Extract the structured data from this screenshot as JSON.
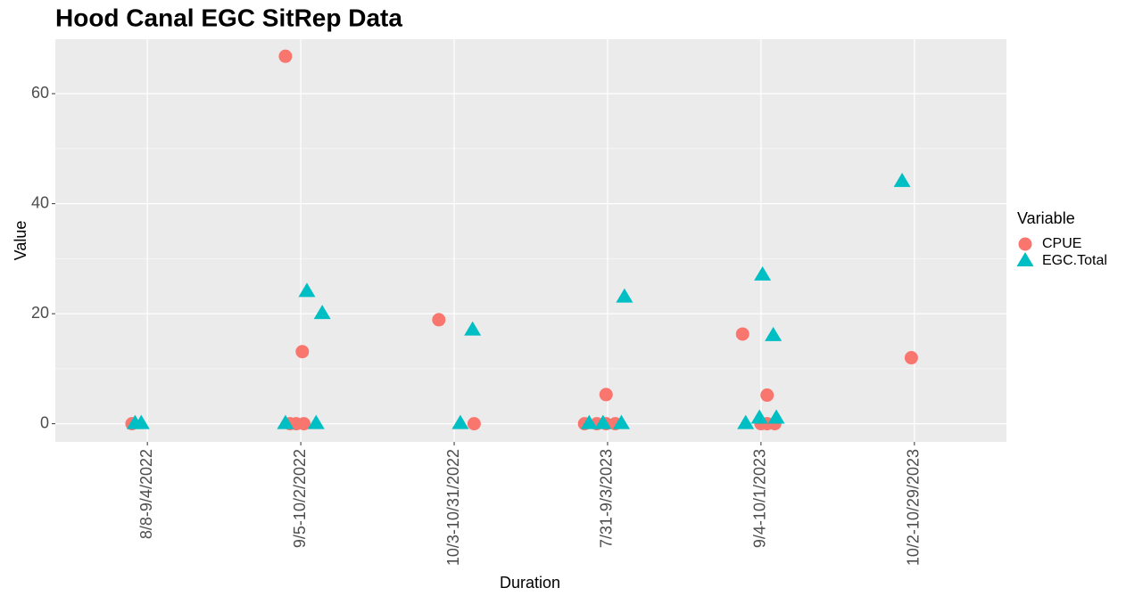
{
  "chart_data": {
    "type": "scatter",
    "title": "Hood Canal EGC SitRep Data",
    "x_label": "Duration",
    "y_label": "Value",
    "legend_title": "Variable",
    "legend": "right",
    "xlim": [
      0.4,
      6.6
    ],
    "ylim": [
      -3.3,
      69.9
    ],
    "xticks": [
      {
        "value": 1,
        "label": "8/8-9/4/2022"
      },
      {
        "value": 2,
        "label": "9/5-10/2/2022"
      },
      {
        "value": 3,
        "label": "10/3-10/31/2022"
      },
      {
        "value": 4,
        "label": "7/31-9/3/2023"
      },
      {
        "value": 5,
        "label": "9/4-10/1/2023"
      },
      {
        "value": 6,
        "label": "10/2-10/29/2023"
      }
    ],
    "yticks": [
      0,
      20,
      40,
      60
    ],
    "yminor_ticks": [
      10,
      30,
      50
    ],
    "grid": true,
    "series": [
      {
        "name": "CPUE",
        "color": "#F8766D",
        "marker": "circle",
        "x": [
          0.9,
          1.9,
          2.01,
          1.93,
          1.97,
          2.02,
          2.9,
          3.13,
          3.99,
          3.85,
          3.93,
          3.99,
          4.05,
          4.88,
          5.04,
          5.0,
          5.04,
          5.09,
          5.98
        ],
        "values": [
          0,
          66.8,
          13.1,
          0,
          0,
          0,
          18.9,
          0,
          5.3,
          0,
          0,
          0,
          0,
          16.3,
          5.2,
          0,
          0,
          0,
          12.0
        ]
      },
      {
        "name": "EGC.Total",
        "color": "#00BFC4",
        "marker": "triangle",
        "x": [
          0.92,
          0.96,
          1.9,
          2.1,
          2.04,
          2.14,
          3.12,
          3.04,
          4.11,
          3.88,
          3.97,
          4.09,
          5.01,
          5.08,
          4.99,
          5.1,
          4.9,
          5.92
        ],
        "values": [
          0,
          0,
          0,
          0,
          24,
          20,
          17,
          0,
          23,
          0,
          0,
          0,
          27,
          16,
          1,
          1,
          0,
          44
        ]
      }
    ]
  }
}
